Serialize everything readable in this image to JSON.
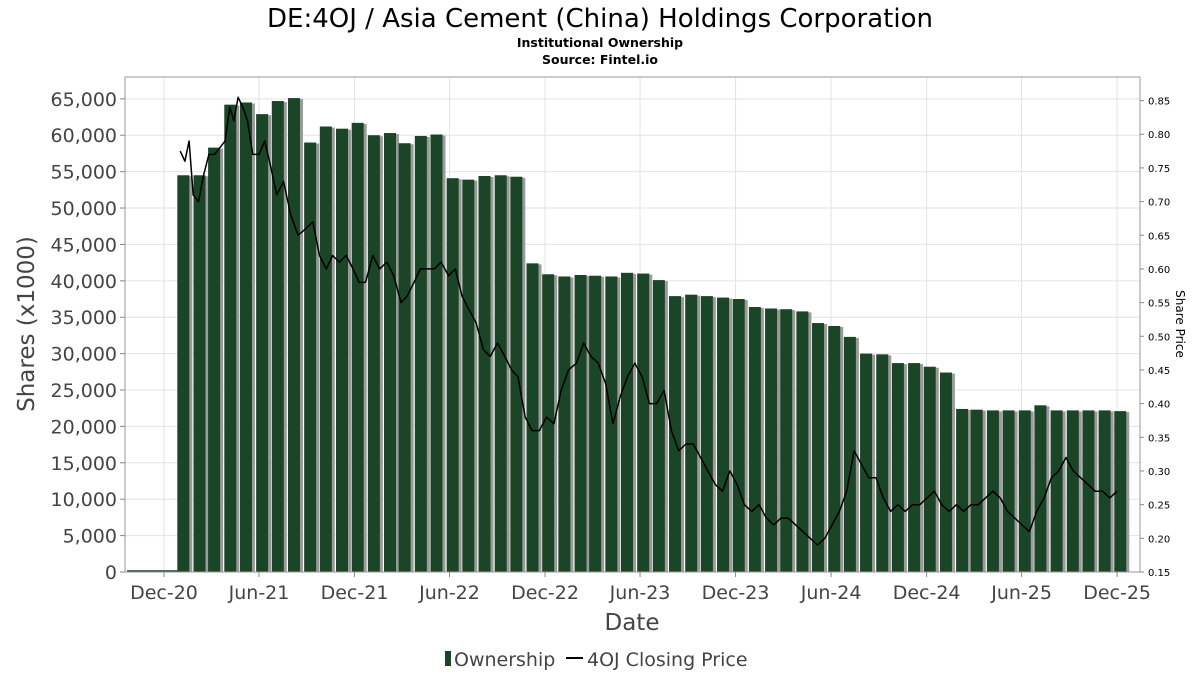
{
  "chart_data": {
    "type": "bar",
    "title": "DE:4OJ / Asia Cement (China) Holdings Corporation",
    "subtitle": "Institutional Ownership",
    "source": "Source: Fintel.io",
    "xlabel": "Date",
    "ylabel": "Shares (x1000)",
    "y2label": "Share Price",
    "ylim": [
      0,
      68000
    ],
    "y2lim": [
      0.15,
      0.885
    ],
    "grid": true,
    "legend_position": "bottom",
    "x_tick_labels": [
      "Dec-20",
      "Jun-21",
      "Dec-21",
      "Jun-22",
      "Dec-22",
      "Jun-23",
      "Dec-23",
      "Jun-24",
      "Dec-24",
      "Jun-25",
      "Dec-25"
    ],
    "x_tick_dates": [
      "2020-12-01",
      "2021-06-01",
      "2021-12-01",
      "2022-06-01",
      "2022-12-01",
      "2023-06-01",
      "2023-12-01",
      "2024-06-01",
      "2024-12-01",
      "2025-06-01",
      "2025-12-01"
    ],
    "y_tick_labels": [
      "0",
      "5,000",
      "10,000",
      "15,000",
      "20,000",
      "25,000",
      "30,000",
      "35,000",
      "40,000",
      "45,000",
      "50,000",
      "55,000",
      "60,000",
      "65,000"
    ],
    "y2_tick_labels": [
      "0.15",
      "0.20",
      "0.25",
      "0.30",
      "0.35",
      "0.40",
      "0.45",
      "0.50",
      "0.55",
      "0.60",
      "0.65",
      "0.70",
      "0.75",
      "0.80",
      "0.85"
    ],
    "series": [
      {
        "name": "Ownership",
        "kind": "bar",
        "color": "#1a4526",
        "x": [
          "2021-01-07",
          "2021-02-07",
          "2021-03-07",
          "2021-04-07",
          "2021-05-07",
          "2021-06-07",
          "2021-07-07",
          "2021-08-07",
          "2021-09-07",
          "2021-10-07",
          "2021-11-07",
          "2021-12-07",
          "2022-01-07",
          "2022-02-07",
          "2022-03-07",
          "2022-04-07",
          "2022-05-07",
          "2022-06-07",
          "2022-07-07",
          "2022-08-07",
          "2022-09-07",
          "2022-10-07",
          "2022-11-07",
          "2022-12-07",
          "2023-01-07",
          "2023-02-07",
          "2023-03-07",
          "2023-04-07",
          "2023-05-07",
          "2023-06-07",
          "2023-07-07",
          "2023-08-07",
          "2023-09-07",
          "2023-10-07",
          "2023-11-07",
          "2023-12-07",
          "2024-01-07",
          "2024-02-07",
          "2024-03-07",
          "2024-04-07",
          "2024-05-07",
          "2024-06-07",
          "2024-07-07",
          "2024-08-07",
          "2024-09-07",
          "2024-10-07",
          "2024-11-07",
          "2024-12-07",
          "2025-01-07",
          "2025-02-07",
          "2025-03-07",
          "2025-04-07",
          "2025-05-07",
          "2025-06-07",
          "2025-07-07",
          "2025-08-07",
          "2025-09-07",
          "2025-10-07",
          "2025-11-07",
          "2025-12-07"
        ],
        "values": [
          54500,
          54500,
          58300,
          64200,
          64500,
          62900,
          64700,
          65100,
          59000,
          61200,
          60900,
          61700,
          60000,
          60300,
          58900,
          59900,
          60100,
          54100,
          53900,
          54400,
          54500,
          54300,
          42400,
          40900,
          40600,
          40800,
          40700,
          40600,
          41100,
          41000,
          40100,
          37900,
          38100,
          37900,
          37700,
          37500,
          36400,
          36200,
          36100,
          35800,
          34200,
          33800,
          32300,
          30000,
          29900,
          28700,
          28700,
          28200,
          27400,
          22400,
          22300,
          22200,
          22200,
          22200,
          22900,
          22200,
          22200,
          22200,
          22200,
          22100
        ]
      },
      {
        "name": "4OJ Closing Price",
        "kind": "line",
        "color": "#000000",
        "x": [
          "2021-01-01",
          "2021-01-10",
          "2021-01-18",
          "2021-01-26",
          "2021-02-05",
          "2021-02-15",
          "2021-02-25",
          "2021-03-08",
          "2021-03-18",
          "2021-03-28",
          "2021-04-06",
          "2021-04-14",
          "2021-04-22",
          "2021-05-01",
          "2021-05-10",
          "2021-05-20",
          "2021-06-01",
          "2021-06-12",
          "2021-06-24",
          "2021-07-05",
          "2021-07-18",
          "2021-08-01",
          "2021-08-15",
          "2021-08-30",
          "2021-09-12",
          "2021-09-25",
          "2021-10-08",
          "2021-10-20",
          "2021-11-02",
          "2021-11-15",
          "2021-11-28",
          "2021-12-10",
          "2021-12-22",
          "2022-01-05",
          "2022-01-18",
          "2022-02-01",
          "2022-02-14",
          "2022-02-28",
          "2022-03-12",
          "2022-03-25",
          "2022-04-06",
          "2022-04-20",
          "2022-05-03",
          "2022-05-16",
          "2022-05-30",
          "2022-06-12",
          "2022-06-25",
          "2022-07-08",
          "2022-07-22",
          "2022-08-05",
          "2022-08-18",
          "2022-09-01",
          "2022-09-15",
          "2022-09-28",
          "2022-10-10",
          "2022-10-24",
          "2022-11-06",
          "2022-11-20",
          "2022-12-04",
          "2022-12-18",
          "2023-01-01",
          "2023-01-15",
          "2023-01-30",
          "2023-02-13",
          "2023-02-27",
          "2023-03-13",
          "2023-03-27",
          "2023-04-10",
          "2023-04-24",
          "2023-05-08",
          "2023-05-22",
          "2023-06-05",
          "2023-06-19",
          "2023-07-03",
          "2023-07-17",
          "2023-07-31",
          "2023-08-14",
          "2023-08-28",
          "2023-09-11",
          "2023-09-25",
          "2023-10-09",
          "2023-10-23",
          "2023-11-06",
          "2023-11-20",
          "2023-12-04",
          "2023-12-18",
          "2024-01-01",
          "2024-01-15",
          "2024-01-29",
          "2024-02-12",
          "2024-02-26",
          "2024-03-11",
          "2024-03-25",
          "2024-04-08",
          "2024-04-22",
          "2024-05-06",
          "2024-05-20",
          "2024-06-03",
          "2024-06-17",
          "2024-07-01",
          "2024-07-15",
          "2024-07-29",
          "2024-08-12",
          "2024-08-26",
          "2024-09-09",
          "2024-09-23",
          "2024-10-07",
          "2024-10-21",
          "2024-11-04",
          "2024-11-18",
          "2024-12-02",
          "2024-12-16",
          "2024-12-30",
          "2025-01-13",
          "2025-01-27",
          "2025-02-10",
          "2025-02-24",
          "2025-03-10",
          "2025-03-24",
          "2025-04-07",
          "2025-04-21",
          "2025-05-05",
          "2025-05-19",
          "2025-06-02",
          "2025-06-16",
          "2025-06-30",
          "2025-07-14",
          "2025-07-28",
          "2025-08-11",
          "2025-08-25",
          "2025-09-08",
          "2025-09-22",
          "2025-10-06",
          "2025-10-20",
          "2025-11-03",
          "2025-11-17",
          "2025-12-01"
        ],
        "values": [
          0.775,
          0.76,
          0.79,
          0.71,
          0.7,
          0.74,
          0.77,
          0.77,
          0.78,
          0.79,
          0.84,
          0.82,
          0.855,
          0.84,
          0.82,
          0.77,
          0.77,
          0.79,
          0.75,
          0.71,
          0.73,
          0.68,
          0.65,
          0.66,
          0.67,
          0.62,
          0.6,
          0.62,
          0.61,
          0.62,
          0.6,
          0.58,
          0.58,
          0.62,
          0.6,
          0.61,
          0.59,
          0.55,
          0.56,
          0.58,
          0.6,
          0.6,
          0.6,
          0.61,
          0.59,
          0.6,
          0.56,
          0.54,
          0.52,
          0.48,
          0.47,
          0.49,
          0.47,
          0.45,
          0.44,
          0.38,
          0.36,
          0.36,
          0.38,
          0.37,
          0.42,
          0.45,
          0.46,
          0.49,
          0.47,
          0.46,
          0.43,
          0.37,
          0.41,
          0.44,
          0.46,
          0.44,
          0.4,
          0.4,
          0.42,
          0.36,
          0.33,
          0.34,
          0.34,
          0.32,
          0.3,
          0.28,
          0.27,
          0.3,
          0.28,
          0.25,
          0.24,
          0.25,
          0.23,
          0.22,
          0.23,
          0.23,
          0.22,
          0.21,
          0.2,
          0.19,
          0.2,
          0.22,
          0.24,
          0.27,
          0.33,
          0.31,
          0.29,
          0.29,
          0.26,
          0.24,
          0.25,
          0.24,
          0.25,
          0.25,
          0.26,
          0.27,
          0.25,
          0.24,
          0.25,
          0.24,
          0.25,
          0.25,
          0.26,
          0.27,
          0.26,
          0.24,
          0.23,
          0.22,
          0.21,
          0.24,
          0.26,
          0.29,
          0.3,
          0.32,
          0.3,
          0.29,
          0.28,
          0.27,
          0.27,
          0.26,
          0.27
        ]
      }
    ]
  }
}
